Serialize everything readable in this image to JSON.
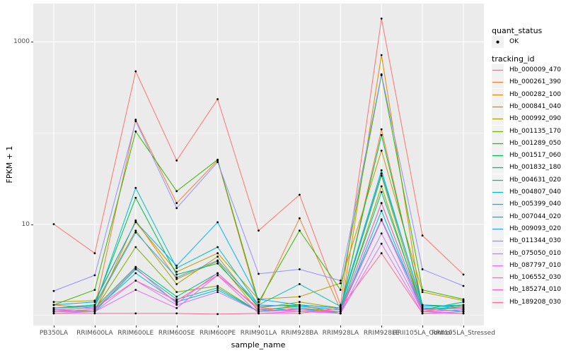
{
  "figure": {
    "background": "#FFFFFF",
    "panel_background": "#EBEBEB",
    "gridline_color": "#FFFFFF",
    "point_color": "#000000",
    "tick_text_color": "#4D4D4D",
    "legend_key_background": "#F2F2F2"
  },
  "axes": {
    "x": {
      "title": "sample_name"
    },
    "y": {
      "title": "FPKM + 1",
      "scale": "log10",
      "major_tick_labels": [
        "10",
        "1000"
      ],
      "major_tick_values": [
        10,
        1000
      ],
      "minor_tick_values": [
        1,
        100
      ]
    }
  },
  "legend": {
    "quant_status": {
      "title": "quant_status",
      "items": [
        {
          "label": "OK",
          "symbol": "point",
          "color": "#000000"
        }
      ]
    },
    "tracking_id": {
      "title": "tracking_id"
    }
  },
  "chart_data": {
    "type": "line",
    "title": "",
    "xlabel": "sample_name",
    "ylabel": "FPKM + 1",
    "y_scale": "log10",
    "ylim": [
      0.75,
      2500
    ],
    "grid": true,
    "legend_position": "right",
    "x_categories": [
      "PB350LA",
      "RRIM600LA",
      "RRIM600LE",
      "RRIM600SE",
      "RRIM600PE",
      "RRIM901LA",
      "RRIM928BA",
      "RRIM928LA",
      "RRIM928LE",
      "RRII105LA_Control",
      "RRII105LA_Stressed"
    ],
    "series": [
      {
        "name": "Hb_000009_470",
        "color": "#F8766D",
        "values": [
          10,
          4.8,
          475,
          50,
          235,
          8.5,
          21,
          1.3,
          1800,
          7.5,
          2.8
        ]
      },
      {
        "name": "Hb_000261_390",
        "color": "#EA8331",
        "values": [
          1.3,
          1.2,
          140,
          17,
          50,
          1.3,
          11.6,
          1.15,
          110,
          1.2,
          1.1
        ]
      },
      {
        "name": "Hb_000282_100",
        "color": "#D89000",
        "values": [
          1.15,
          1.1,
          11,
          2.5,
          3.9,
          1.1,
          1.3,
          1.05,
          717,
          1.1,
          1.3
        ]
      },
      {
        "name": "Hb_000841_040",
        "color": "#C09B00",
        "values": [
          1.4,
          1.45,
          10.5,
          3.0,
          4.8,
          1.5,
          1.6,
          2.25,
          64,
          1.8,
          1.45
        ]
      },
      {
        "name": "Hb_000992_090",
        "color": "#A3A500",
        "values": [
          1.2,
          1.3,
          8.5,
          2.2,
          4.4,
          1.2,
          1.4,
          1.2,
          34,
          1.15,
          1.4
        ]
      },
      {
        "name": "Hb_001135_170",
        "color": "#7CAE00",
        "values": [
          1.1,
          1.15,
          5.6,
          1.8,
          2.1,
          1.1,
          1.2,
          1.1,
          26,
          1.1,
          1.15
        ]
      },
      {
        "name": "Hb_001289_050",
        "color": "#39B600",
        "values": [
          1.3,
          1.9,
          104,
          23,
          51,
          1.4,
          8.5,
          1.9,
          430,
          1.9,
          1.5
        ]
      },
      {
        "name": "Hb_001517_060",
        "color": "#00BB4E",
        "values": [
          1.2,
          1.3,
          19.5,
          2.8,
          3.7,
          1.25,
          1.3,
          1.2,
          95,
          1.3,
          1.25
        ]
      },
      {
        "name": "Hb_001832_180",
        "color": "#00BF7D",
        "values": [
          1.15,
          1.2,
          3.4,
          1.6,
          2.9,
          1.15,
          1.25,
          1.15,
          22.5,
          1.2,
          1.2
        ]
      },
      {
        "name": "Hb_004631_020",
        "color": "#00C1A3",
        "values": [
          1.1,
          1.1,
          3.2,
          1.5,
          2.0,
          1.1,
          1.15,
          1.1,
          17,
          1.15,
          1.4
        ]
      },
      {
        "name": "Hb_004807_040",
        "color": "#00BFC4",
        "values": [
          1.2,
          1.25,
          25,
          3.3,
          5.6,
          1.3,
          2.2,
          1.25,
          39,
          1.25,
          1.3
        ]
      },
      {
        "name": "Hb_005399_040",
        "color": "#00BAE0",
        "values": [
          1.1,
          1.15,
          2.9,
          1.4,
          1.9,
          1.1,
          1.2,
          1.05,
          14,
          1.1,
          1.15
        ]
      },
      {
        "name": "Hb_007044_020",
        "color": "#00B0F6",
        "values": [
          1.3,
          1.4,
          10.6,
          3.5,
          10.5,
          1.5,
          1.3,
          1.2,
          36,
          1.3,
          1.2
        ]
      },
      {
        "name": "Hb_009093_020",
        "color": "#35A2FF",
        "values": [
          1.2,
          1.25,
          8.1,
          2.6,
          4.0,
          1.3,
          1.25,
          1.15,
          11.3,
          1.2,
          1.1
        ]
      },
      {
        "name": "Hb_011344_030",
        "color": "#9590FF",
        "values": [
          1.85,
          2.75,
          135,
          15,
          48,
          2.85,
          3.2,
          2.4,
          440,
          3.2,
          2.1
        ]
      },
      {
        "name": "Hb_075050_010",
        "color": "#C77CFF",
        "values": [
          1.1,
          1.1,
          2.4,
          1.3,
          1.8,
          1.1,
          1.15,
          1.05,
          7.9,
          1.1,
          1.05
        ]
      },
      {
        "name": "Hb_087797_010",
        "color": "#E76BF3",
        "values": [
          1.05,
          1.1,
          1.9,
          1.2,
          2.75,
          1.05,
          1.1,
          1.05,
          6.1,
          1.05,
          1.1
        ]
      },
      {
        "name": "Hb_106552_030",
        "color": "#FA62DB",
        "values": [
          1.1,
          1.15,
          3.3,
          1.35,
          2.9,
          1.15,
          1.1,
          1.1,
          11,
          1.1,
          1.15
        ]
      },
      {
        "name": "Hb_185274_010",
        "color": "#FF62BC",
        "values": [
          1.15,
          1.2,
          2.4,
          1.45,
          2.75,
          1.2,
          1.15,
          1.1,
          17,
          1.15,
          1.2
        ]
      },
      {
        "name": "Hb_189208_030",
        "color": "#FF6A98",
        "values": [
          1.05,
          1.05,
          1.05,
          1.05,
          1.03,
          1.05,
          1.05,
          1.2,
          4.8,
          1.05,
          1.05
        ]
      }
    ]
  }
}
